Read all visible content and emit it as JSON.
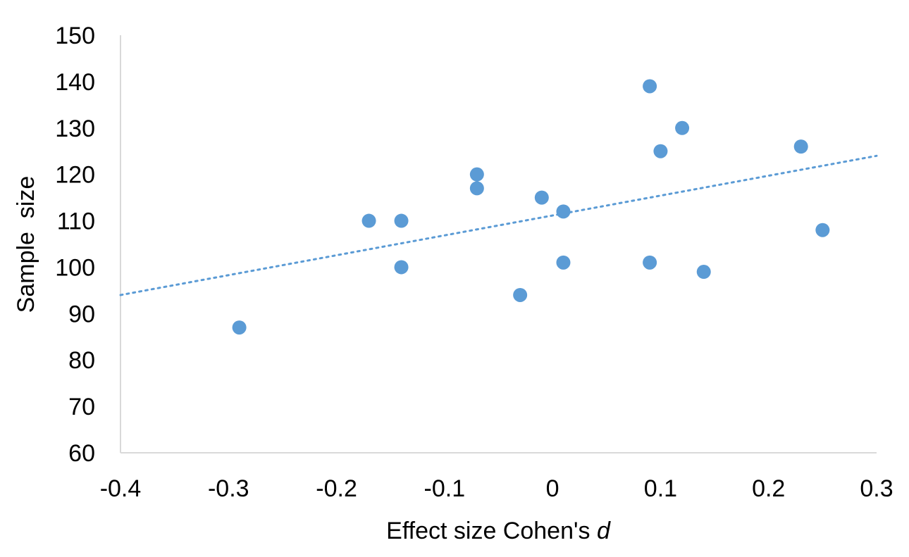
{
  "chart_data": {
    "type": "scatter",
    "xlabel_prefix": "Effect size Cohen's ",
    "xlabel_italic": "d",
    "ylabel": "Sample  size",
    "xlim": [
      -0.4,
      0.3
    ],
    "ylim": [
      60,
      150
    ],
    "xticks": [
      -0.4,
      -0.3,
      -0.2,
      -0.1,
      0,
      0.1,
      0.2,
      0.3
    ],
    "xtick_labels": [
      "-0.4",
      "-0.3",
      "-0.2",
      "-0.1",
      "0",
      "0.1",
      "0.2",
      "0.3"
    ],
    "yticks": [
      60,
      70,
      80,
      90,
      100,
      110,
      120,
      130,
      140,
      150
    ],
    "ytick_labels": [
      "60",
      "70",
      "80",
      "90",
      "100",
      "110",
      "120",
      "130",
      "140",
      "150"
    ],
    "grid": false,
    "series": [
      {
        "points": [
          {
            "x": -0.29,
            "y": 87
          },
          {
            "x": -0.17,
            "y": 110
          },
          {
            "x": -0.14,
            "y": 110
          },
          {
            "x": -0.14,
            "y": 100
          },
          {
            "x": -0.07,
            "y": 120
          },
          {
            "x": -0.07,
            "y": 117
          },
          {
            "x": -0.03,
            "y": 94
          },
          {
            "x": -0.01,
            "y": 115
          },
          {
            "x": 0.01,
            "y": 112
          },
          {
            "x": 0.01,
            "y": 101
          },
          {
            "x": 0.09,
            "y": 139
          },
          {
            "x": 0.09,
            "y": 101
          },
          {
            "x": 0.1,
            "y": 125
          },
          {
            "x": 0.12,
            "y": 130
          },
          {
            "x": 0.14,
            "y": 99
          },
          {
            "x": 0.23,
            "y": 126
          },
          {
            "x": 0.25,
            "y": 108
          }
        ]
      }
    ],
    "trendline": {
      "type": "linear",
      "style": "dotted",
      "x0": -0.4,
      "y0": 94,
      "x1": 0.3,
      "y1": 124
    },
    "color": "#5b9bd5"
  }
}
